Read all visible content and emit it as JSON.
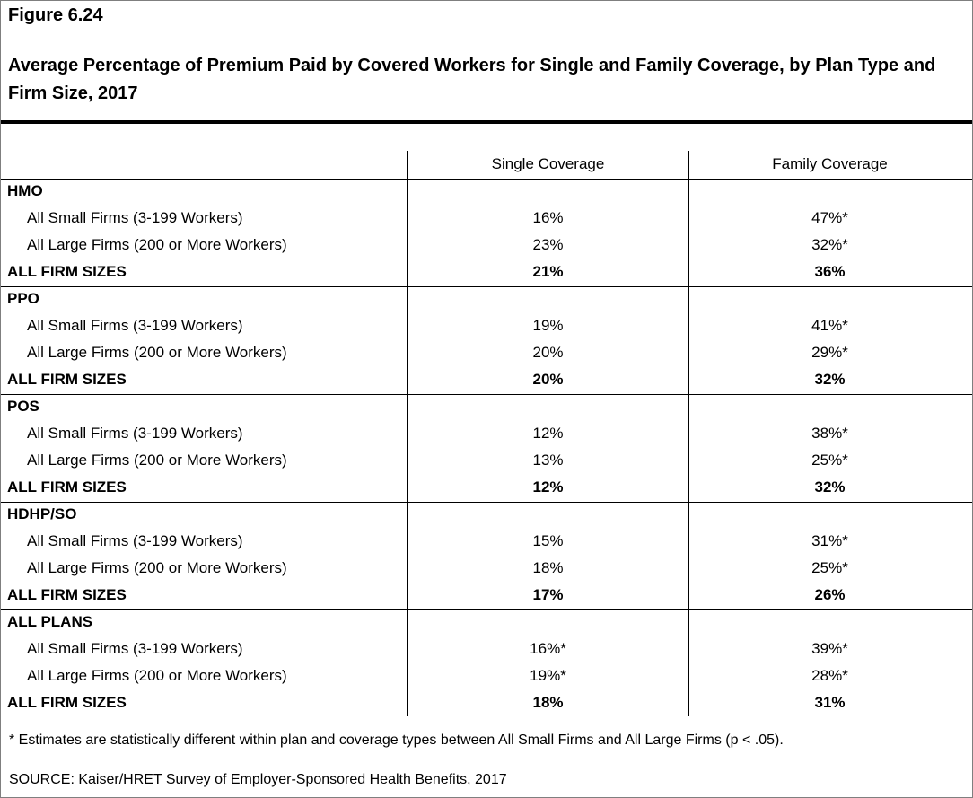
{
  "figure_label": "Figure 6.24",
  "title": "Average Percentage of Premium Paid by Covered Workers for Single and Family Coverage, by Plan Type and Firm Size, 2017",
  "columns": {
    "single": "Single Coverage",
    "family": "Family Coverage"
  },
  "groups": [
    {
      "name": "HMO",
      "rows": [
        {
          "label": "All Small Firms (3-199 Workers)",
          "single": "16%",
          "family": "47%*"
        },
        {
          "label": "All Large Firms (200 or More Workers)",
          "single": "23%",
          "family": "32%*"
        }
      ],
      "total": {
        "label": "ALL FIRM SIZES",
        "single": "21%",
        "family": "36%"
      }
    },
    {
      "name": "PPO",
      "rows": [
        {
          "label": "All Small Firms (3-199 Workers)",
          "single": "19%",
          "family": "41%*"
        },
        {
          "label": "All Large Firms (200 or More Workers)",
          "single": "20%",
          "family": "29%*"
        }
      ],
      "total": {
        "label": "ALL FIRM SIZES",
        "single": "20%",
        "family": "32%"
      }
    },
    {
      "name": "POS",
      "rows": [
        {
          "label": "All Small Firms (3-199 Workers)",
          "single": "12%",
          "family": "38%*"
        },
        {
          "label": "All Large Firms (200 or More Workers)",
          "single": "13%",
          "family": "25%*"
        }
      ],
      "total": {
        "label": "ALL FIRM SIZES",
        "single": "12%",
        "family": "32%"
      }
    },
    {
      "name": "HDHP/SO",
      "rows": [
        {
          "label": "All Small Firms (3-199 Workers)",
          "single": "15%",
          "family": "31%*"
        },
        {
          "label": "All Large Firms (200 or More Workers)",
          "single": "18%",
          "family": "25%*"
        }
      ],
      "total": {
        "label": "ALL FIRM SIZES",
        "single": "17%",
        "family": "26%"
      }
    },
    {
      "name": "ALL PLANS",
      "rows": [
        {
          "label": "All Small Firms (3-199 Workers)",
          "single": "16%*",
          "family": "39%*"
        },
        {
          "label": "All Large Firms (200 or More Workers)",
          "single": "19%*",
          "family": "28%*"
        }
      ],
      "total": {
        "label": "ALL FIRM SIZES",
        "single": "18%",
        "family": "31%"
      }
    }
  ],
  "footnote": "* Estimates are statistically different within plan and coverage types between All Small Firms and All Large Firms (p < .05).",
  "source": "SOURCE: Kaiser/HRET Survey of Employer-Sponsored Health Benefits, 2017"
}
